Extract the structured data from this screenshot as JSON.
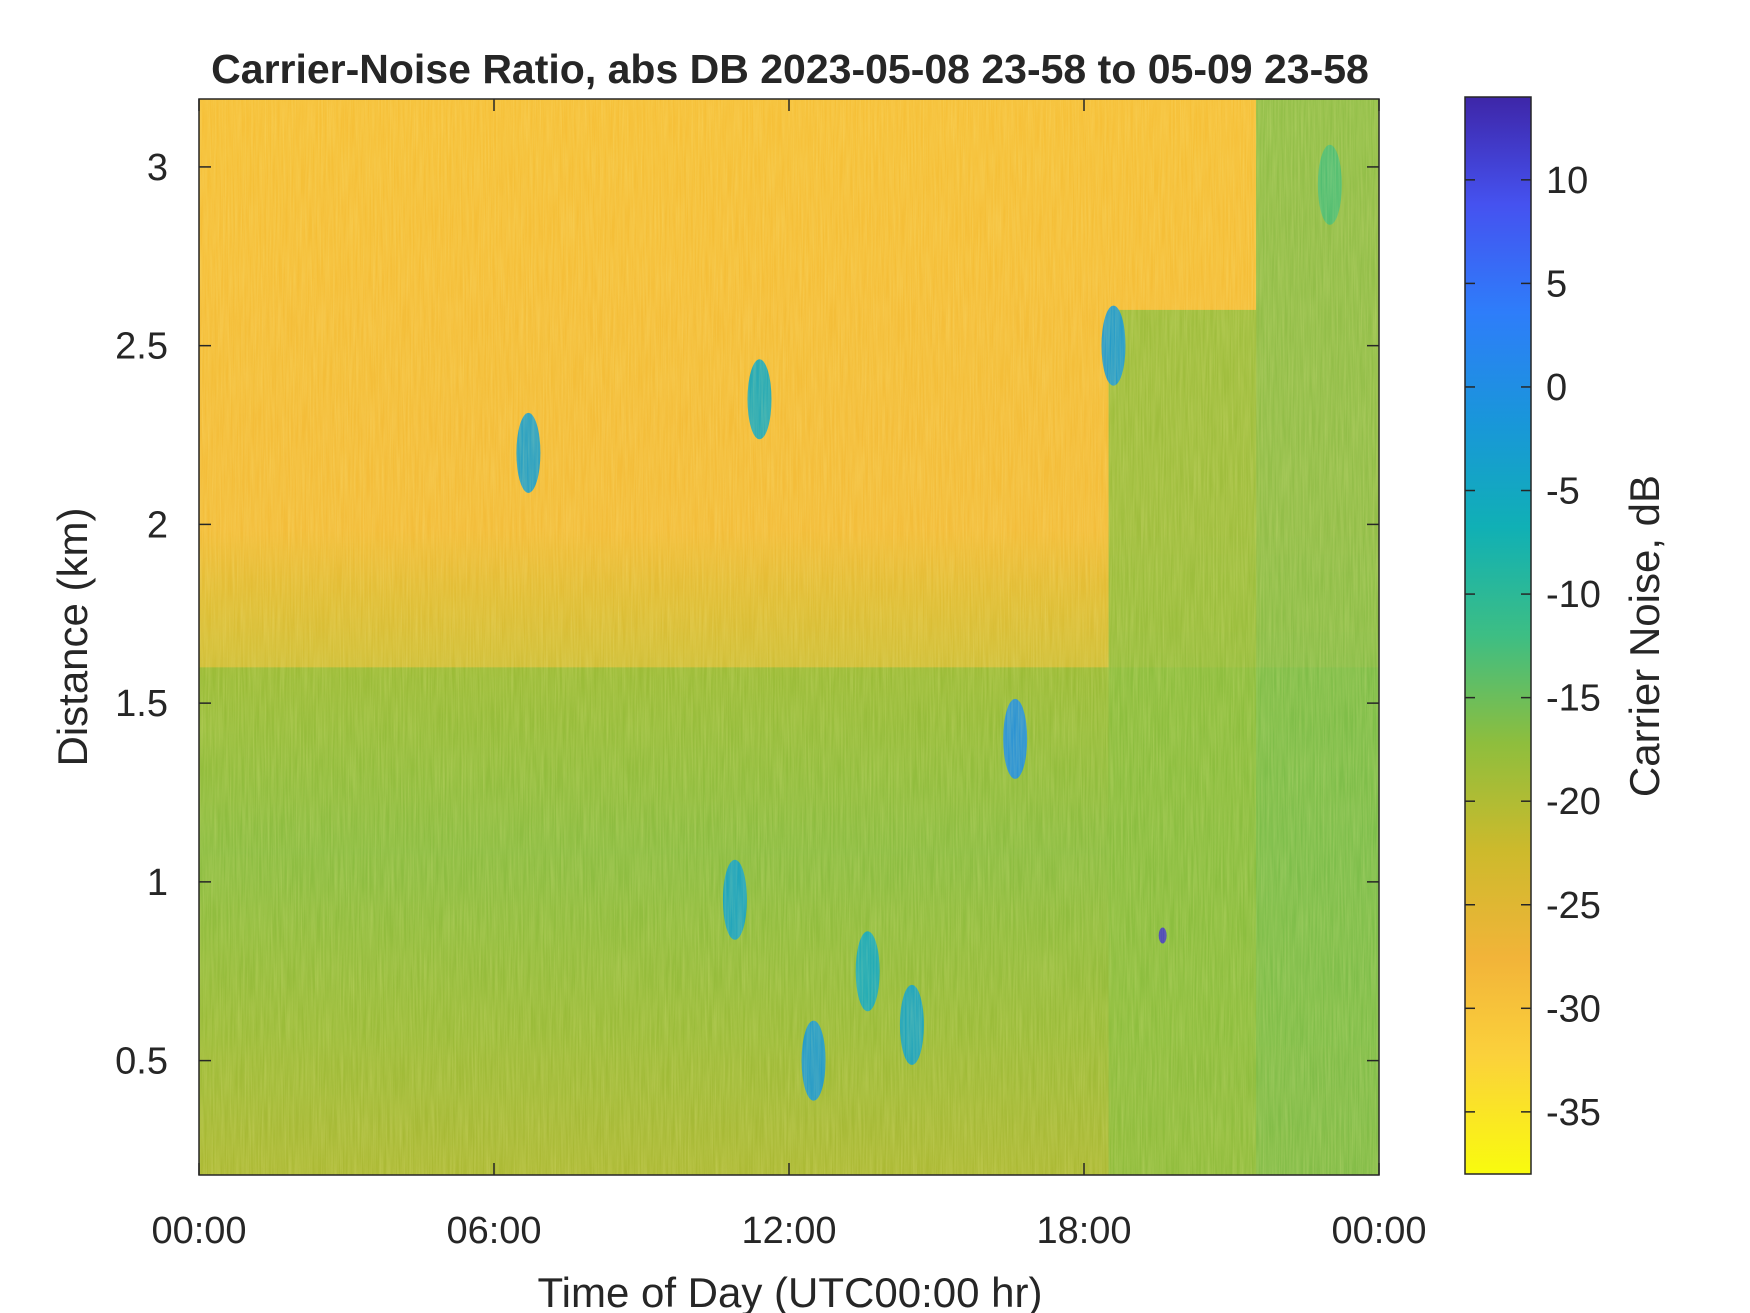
{
  "chart_data": {
    "type": "heatmap",
    "title": "Carrier-Noise Ratio, abs DB 2023-05-08 23-58 to 05-09 23-58",
    "xlabel": "Time of Day (UTC00:00 hr)",
    "ylabel": "Distance (km)",
    "colorbar_label": "Carrier Noise, dB",
    "colormap": "parula-reversed",
    "x_ticks": [
      "00:00",
      "06:00",
      "12:00",
      "18:00",
      "00:00"
    ],
    "x_tick_hours": [
      0,
      6,
      12,
      18,
      24
    ],
    "xlim_hours": [
      0,
      24
    ],
    "y_ticks": [
      0.5,
      1,
      1.5,
      2,
      2.5,
      3
    ],
    "y_tick_labels": [
      "0.5",
      "1",
      "1.5",
      "2",
      "2.5",
      "3"
    ],
    "ylim": [
      0.18,
      3.19
    ],
    "colorbar_ticks": [
      10,
      5,
      0,
      -5,
      -10,
      -15,
      -20,
      -25,
      -30,
      -35
    ],
    "colorbar_tick_labels": [
      "10",
      "5",
      "0",
      "-5",
      "-10",
      "-15",
      "-20",
      "-25",
      "-30",
      "-35"
    ],
    "clim": [
      -38,
      14
    ],
    "regions": [
      {
        "name": "upper layer",
        "x_hours": [
          0,
          24
        ],
        "y_km": [
          1.6,
          3.19
        ],
        "value_db": -30
      },
      {
        "name": "lower layer",
        "x_hours": [
          0,
          24
        ],
        "y_km": [
          0.18,
          1.6
        ],
        "value_db": -18
      },
      {
        "name": "afternoon column",
        "x_hours": [
          18.5,
          21.5
        ],
        "y_km": [
          0.18,
          2.6
        ],
        "value_db": -17
      },
      {
        "name": "late column",
        "x_hours": [
          21.5,
          24
        ],
        "y_km": [
          0.18,
          3.19
        ],
        "value_db": -16
      }
    ],
    "features": [
      {
        "x_hours": 6.7,
        "y_km": 2.2,
        "value_db": -3
      },
      {
        "x_hours": 11.4,
        "y_km": 2.35,
        "value_db": -5
      },
      {
        "x_hours": 10.9,
        "y_km": 0.95,
        "value_db": -4
      },
      {
        "x_hours": 12.5,
        "y_km": 0.5,
        "value_db": -2
      },
      {
        "x_hours": 13.6,
        "y_km": 0.75,
        "value_db": -5
      },
      {
        "x_hours": 14.5,
        "y_km": 0.6,
        "value_db": -4
      },
      {
        "x_hours": 16.6,
        "y_km": 1.4,
        "value_db": 0
      },
      {
        "x_hours": 18.6,
        "y_km": 2.5,
        "value_db": -2
      },
      {
        "x_hours": 19.6,
        "y_km": 0.85,
        "value_db": 12
      },
      {
        "x_hours": 23.0,
        "y_km": 2.95,
        "value_db": -13
      }
    ]
  }
}
